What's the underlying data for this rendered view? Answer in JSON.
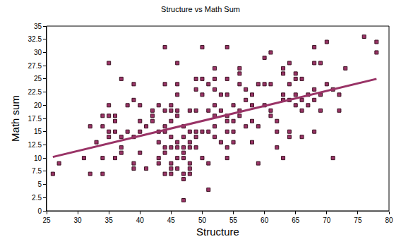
{
  "chart_data": {
    "type": "scatter",
    "title": "Structure vs Math Sum",
    "x_label": "Structure",
    "y_label": "Math sum",
    "xlim": [
      25,
      80
    ],
    "xticks": [
      25,
      30,
      35,
      40,
      45,
      50,
      55,
      60,
      65,
      70,
      75,
      80
    ],
    "ylim": [
      0,
      35
    ],
    "yticks": [
      0,
      2.5,
      5,
      7.5,
      10,
      12.5,
      15,
      17.5,
      20,
      22.5,
      25,
      27.5,
      30,
      32.5,
      35
    ],
    "grid": false,
    "series": [
      {
        "type": "scatter",
        "marker": "square",
        "color": "#993366",
        "x": [
          26,
          27,
          31,
          32,
          32,
          33,
          34,
          34,
          34,
          34,
          35,
          35,
          35,
          35,
          35,
          36,
          36,
          36,
          36,
          37,
          37,
          37,
          37,
          38,
          38,
          39,
          39,
          39,
          39,
          39,
          40,
          40,
          40,
          40,
          41,
          41,
          42,
          42,
          42,
          43,
          43,
          43,
          43,
          43,
          44,
          44,
          44,
          44,
          44,
          44,
          44,
          44,
          45,
          45,
          45,
          45,
          45,
          45,
          45,
          45,
          46,
          46,
          46,
          46,
          46,
          46,
          46,
          46,
          46,
          47,
          47,
          47,
          47,
          47,
          47,
          47,
          47,
          48,
          48,
          48,
          48,
          48,
          48,
          48,
          49,
          49,
          49,
          49,
          49,
          49,
          50,
          50,
          50,
          50,
          50,
          51,
          51,
          51,
          51,
          51,
          52,
          52,
          52,
          52,
          52,
          52,
          52,
          53,
          53,
          53,
          54,
          54,
          54,
          54,
          54,
          54,
          54,
          54,
          55,
          55,
          55,
          55,
          56,
          56,
          56,
          56,
          56,
          57,
          57,
          57,
          58,
          58,
          58,
          58,
          59,
          59,
          59,
          60,
          60,
          60,
          61,
          61,
          61,
          61,
          62,
          62,
          62,
          63,
          63,
          63,
          63,
          63,
          64,
          64,
          64,
          64,
          64,
          65,
          65,
          65,
          65,
          66,
          66,
          66,
          66,
          67,
          67,
          68,
          68,
          68,
          68,
          68,
          69,
          69,
          69,
          70,
          70,
          71,
          71,
          72,
          72,
          73,
          76,
          78,
          78
        ],
        "values": [
          7,
          9,
          10,
          7,
          16,
          13,
          10,
          16,
          18,
          7,
          28,
          20,
          18,
          15,
          14,
          17,
          18,
          15,
          10,
          25,
          14,
          12,
          11,
          20,
          15,
          24,
          21,
          14,
          9,
          8,
          20,
          17,
          15,
          11,
          8,
          16,
          19,
          18,
          17,
          20,
          15,
          13,
          10,
          9,
          31,
          24,
          19,
          16,
          15,
          12,
          11,
          7,
          17,
          14,
          12,
          9,
          8,
          7,
          19,
          20,
          28,
          24,
          22,
          19,
          18,
          13,
          12,
          10,
          8,
          16,
          14,
          12,
          11,
          10,
          7,
          6,
          2,
          19,
          13,
          12,
          9,
          8,
          7,
          15,
          25,
          23,
          19,
          15,
          14,
          12,
          31,
          25,
          22,
          15,
          10,
          24,
          19,
          9,
          4,
          15,
          27,
          23,
          25,
          20,
          18,
          16,
          14,
          22,
          19,
          13,
          31,
          25,
          22,
          18,
          17,
          15,
          12,
          10,
          20,
          17,
          15,
          13,
          27,
          26,
          24,
          19,
          18,
          23,
          21,
          16,
          22,
          20,
          17,
          13,
          24,
          16,
          9,
          29,
          24,
          20,
          30,
          24,
          19,
          18,
          17,
          15,
          12,
          27,
          26,
          22,
          21,
          10,
          28,
          24,
          21,
          15,
          14,
          26,
          25,
          22,
          20,
          25,
          21,
          19,
          14,
          22,
          20,
          31,
          28,
          23,
          21,
          15,
          28,
          22,
          19,
          32,
          24,
          10,
          23,
          22,
          19,
          27,
          33,
          32,
          30
        ]
      },
      {
        "type": "line",
        "color": "#993366",
        "x": [
          26,
          78
        ],
        "values": [
          10.2,
          25
        ]
      }
    ]
  }
}
